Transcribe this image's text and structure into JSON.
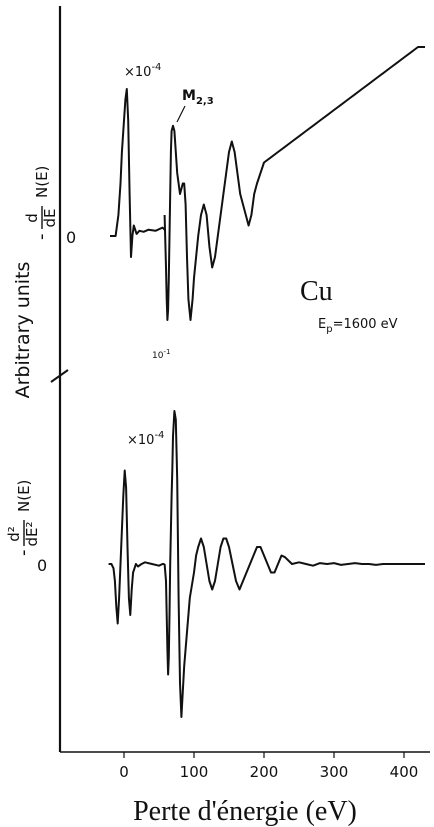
{
  "chart_data": {
    "type": "line",
    "xlabel": "Perte d'énergie (eV)",
    "ylabel": "Arbitrary units",
    "xlim": [
      -70,
      440
    ],
    "xticks": [
      0,
      100,
      200,
      300,
      400
    ],
    "x_tick_labels": [
      "0",
      "100",
      "200",
      "300",
      "400"
    ],
    "annotations": {
      "element": "Cu",
      "ep_label": "E",
      "ep_sub": "p",
      "ep_value": "=1600 eV",
      "edge_label": "M",
      "edge_sub": "2,3",
      "mult_top": "×10",
      "mult_top_exp": "-4",
      "mult_bottom": "×10",
      "mult_bottom_exp": "-4",
      "mult_mid": "10",
      "mult_mid_exp": "-1"
    },
    "panels": [
      {
        "label_pre": "-",
        "label_num": "d",
        "label_den": "dE",
        "label_fn": "N(E)",
        "zero_label": "0",
        "series": [
          {
            "x": [
              -20,
              -12,
              -8,
              -5,
              -3,
              0,
              2,
              4,
              6,
              8,
              10,
              12,
              14,
              18,
              22,
              28,
              35,
              45,
              55,
              58
            ],
            "y": [
              0,
              0,
              2,
              5,
              8,
              11,
              13,
              14,
              11,
              4,
              -2,
              0,
              1,
              0.2,
              0.5,
              0.4,
              0.6,
              0.5,
              0.8,
              0.6
            ]
          },
          {
            "x": [
              58,
              60,
              61,
              62,
              63,
              64,
              65,
              66,
              67,
              68,
              70,
              72,
              74,
              76,
              78,
              80,
              82,
              84,
              86,
              88,
              90,
              92,
              95,
              98,
              100,
              103,
              106,
              110,
              114,
              118,
              122,
              126,
              130,
              134,
              138,
              142,
              146,
              150,
              154,
              158,
              162,
              166,
              170,
              174,
              178,
              182,
              186,
              190,
              195,
              200,
              210,
              220,
              230,
              240,
              250,
              260,
              270,
              280,
              290,
              300,
              310,
              320,
              330,
              340,
              350,
              360,
              370,
              380,
              390,
              400,
              410,
              420,
              430
            ],
            "y": [
              2,
              -3,
              -6,
              -8,
              -7,
              -4,
              0,
              4,
              8,
              10,
              10.5,
              10,
              8,
              6,
              5,
              4,
              4.5,
              5,
              5,
              3,
              -2,
              -6,
              -8,
              -6,
              -4,
              -2,
              0,
              2,
              3,
              2,
              -1,
              -3,
              -2,
              0,
              2,
              4,
              6,
              8,
              9,
              8,
              6,
              4,
              3,
              2,
              1,
              2,
              4,
              5,
              6,
              7,
              7.5,
              8,
              8.5,
              9,
              9.5,
              10,
              10.5,
              11,
              11.5,
              12,
              12.5,
              13,
              13.5,
              14,
              14.5,
              15,
              15.5,
              16,
              16.5,
              17,
              17.5,
              18,
              18
            ]
          }
        ]
      },
      {
        "label_pre": "-",
        "label_num": "d²",
        "label_den": "dE²",
        "label_fn": "N(E)",
        "zero_label": "0",
        "series": [
          {
            "x": [
              -22,
              -18,
              -15,
              -13,
              -11,
              -9,
              -7,
              -5,
              -3,
              -1,
              1,
              3,
              5,
              7,
              9,
              11,
              13,
              15,
              17,
              20,
              25,
              30,
              40,
              50,
              55,
              58
            ],
            "y": [
              0,
              0,
              -0.5,
              -2,
              -5,
              -7,
              -4,
              0,
              4,
              8,
              11,
              9,
              2,
              -4,
              -6,
              -3,
              -1,
              -0.5,
              0,
              -0.3,
              0,
              0.2,
              0,
              -0.2,
              0,
              0
            ]
          },
          {
            "x": [
              58,
              60,
              61,
              62,
              63,
              64,
              65,
              66,
              67,
              68,
              69,
              70,
              72,
              74,
              76,
              78,
              80,
              82,
              84,
              86,
              88,
              90,
              92,
              94,
              96,
              98,
              100,
              103,
              106,
              110,
              114,
              118,
              122,
              126,
              130,
              134,
              138,
              142,
              146,
              150,
              155,
              160,
              165,
              170,
              175,
              180,
              185,
              190,
              195,
              200,
              205,
              210,
              215,
              220,
              225,
              230,
              235,
              240,
              250,
              260,
              270,
              280,
              290,
              300,
              310,
              320,
              330,
              340,
              350,
              360,
              370,
              380,
              390,
              400,
              410,
              420,
              430
            ],
            "y": [
              0,
              -2,
              -6,
              -10,
              -13,
              -11,
              -6,
              0,
              4,
              8,
              11,
              15,
              18,
              17,
              10,
              -4,
              -14,
              -18,
              -15,
              -12,
              -10,
              -8,
              -6,
              -4,
              -3,
              -2,
              -1,
              1,
              2,
              3,
              2,
              0,
              -2,
              -3,
              -2,
              0,
              2,
              3,
              3,
              2,
              0,
              -2,
              -3,
              -2,
              -1,
              0,
              1,
              2,
              2,
              1,
              0,
              -1,
              -1,
              0,
              1,
              0.8,
              0.4,
              0,
              0.2,
              0,
              -0.2,
              0.1,
              0,
              0.1,
              -0.1,
              0,
              0.1,
              0,
              0,
              -0.1,
              0,
              0,
              0,
              0,
              0,
              0,
              0
            ]
          }
        ]
      }
    ]
  }
}
